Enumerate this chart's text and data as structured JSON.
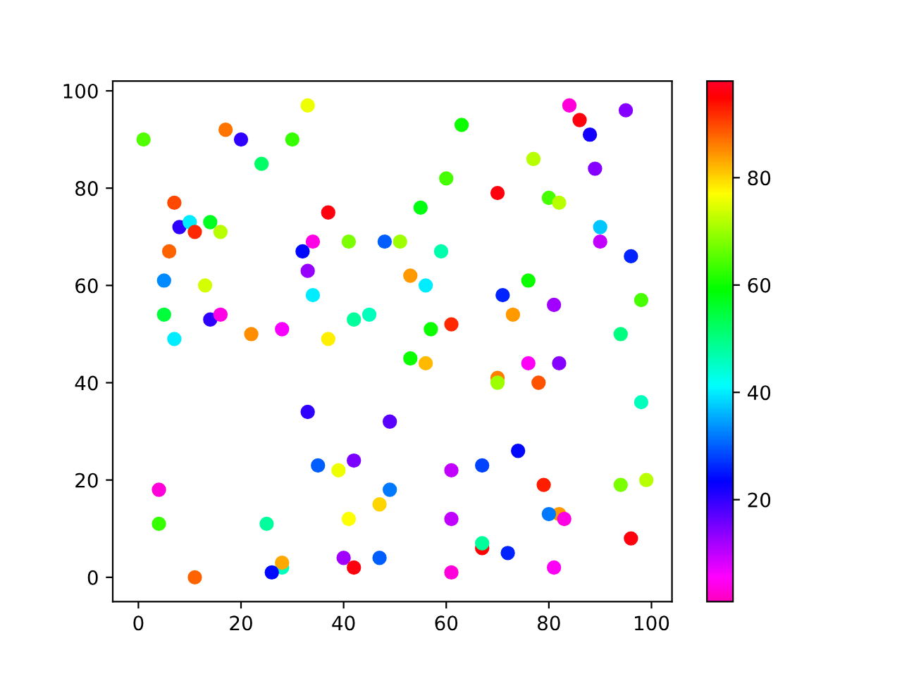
{
  "chart_data": {
    "type": "scatter",
    "x": [
      1,
      17,
      20,
      33,
      30,
      24,
      7,
      8,
      10,
      11,
      14,
      16,
      6,
      5,
      13,
      5,
      14,
      16,
      7,
      22,
      28,
      37,
      34,
      32,
      41,
      48,
      33,
      34,
      37,
      42,
      45,
      84,
      86,
      88,
      95,
      63,
      77,
      89,
      60,
      70,
      80,
      82,
      55,
      90,
      51,
      90,
      59,
      96,
      53,
      56,
      76,
      71,
      81,
      98,
      73,
      57,
      61,
      94,
      33,
      49,
      35,
      39,
      42,
      4,
      4,
      25,
      47,
      49,
      41,
      40,
      42,
      47,
      28,
      28,
      26,
      11,
      53,
      56,
      70,
      70,
      76,
      82,
      78,
      98,
      74,
      67,
      61,
      79,
      94,
      99,
      82,
      80,
      83,
      61,
      67,
      67,
      72,
      96,
      61,
      81
    ],
    "values": [
      90,
      92,
      90,
      97,
      90,
      85,
      77,
      72,
      73,
      71,
      73,
      71,
      67,
      61,
      60,
      54,
      53,
      54,
      49,
      50,
      51,
      75,
      69,
      67,
      69,
      69,
      63,
      58,
      49,
      53,
      54,
      97,
      94,
      91,
      96,
      93,
      86,
      84,
      82,
      79,
      78,
      77,
      76,
      72,
      69,
      69,
      67,
      66,
      62,
      60,
      61,
      58,
      56,
      57,
      54,
      51,
      52,
      50,
      34,
      32,
      23,
      22,
      24,
      18,
      11,
      11,
      15,
      18,
      12,
      4,
      2,
      4,
      2,
      3,
      1,
      0,
      45,
      44,
      41,
      40,
      44,
      44,
      40,
      36,
      26,
      23,
      22,
      19,
      19,
      20,
      13,
      13,
      12,
      12,
      6,
      7,
      5,
      8,
      1,
      2
    ],
    "cvalues": [
      65,
      87,
      20,
      76,
      63,
      52,
      90,
      20,
      40,
      92,
      57,
      72,
      88,
      33,
      74,
      55,
      20,
      4,
      40,
      85,
      6,
      96,
      4,
      24,
      68,
      30,
      13,
      40,
      78,
      48,
      46,
      3,
      96,
      22,
      14,
      60,
      72,
      14,
      64,
      96,
      64,
      72,
      58,
      37,
      70,
      10,
      47,
      26,
      84,
      40,
      60,
      26,
      12,
      64,
      84,
      60,
      92,
      50,
      20,
      17,
      30,
      76,
      15,
      3,
      63,
      48,
      80,
      32,
      77,
      12,
      96,
      30,
      46,
      83,
      24,
      88,
      60,
      82,
      86,
      70,
      5,
      14,
      89,
      46,
      24,
      28,
      10,
      93,
      68,
      72,
      84,
      32,
      4,
      10,
      95,
      48,
      26,
      96,
      3,
      5
    ],
    "clim": [
      1,
      98
    ],
    "cticks": [
      20,
      40,
      60,
      80
    ],
    "xlim": [
      -5,
      104
    ],
    "ylim": [
      -5,
      102
    ],
    "xticks": [
      0,
      20,
      40,
      60,
      80,
      100
    ],
    "yticks": [
      0,
      20,
      40,
      60,
      80,
      100
    ],
    "marker": "circle",
    "grid": false
  }
}
